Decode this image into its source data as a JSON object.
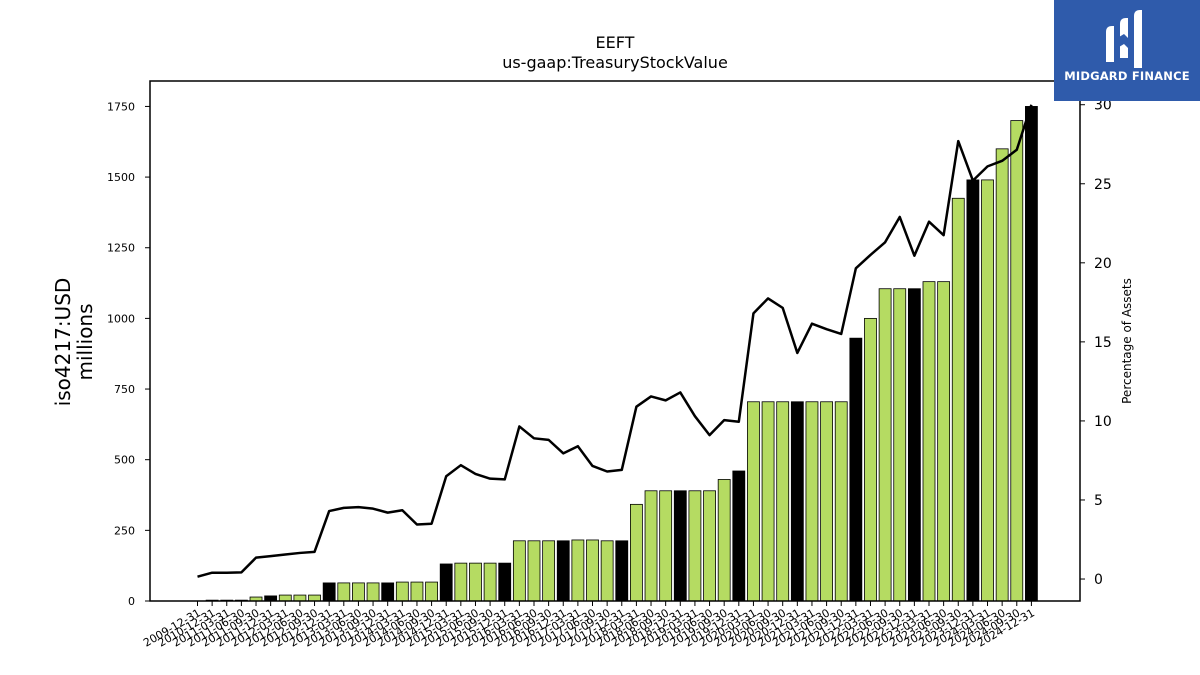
{
  "chart_data": {
    "type": "bar",
    "title": "EEFT",
    "subtitle": "us-gaap:TreasuryStockValue",
    "ylabel": "iso4217:USD\nmillions",
    "y2label": "Percentage of Assets",
    "ylim": [
      0,
      1840
    ],
    "y2lim": [
      -1.39,
      31.5
    ],
    "yticks": [
      0,
      250,
      500,
      750,
      1000,
      1250,
      1500,
      1750
    ],
    "y2ticks": [
      0,
      5,
      10,
      15,
      20,
      25,
      30
    ],
    "categories": [
      "2009-12-31",
      "2010-12-31",
      "2011-03-31",
      "2011-06-30",
      "2011-09-30",
      "2011-12-31",
      "2012-03-31",
      "2012-06-30",
      "2012-09-30",
      "2012-12-31",
      "2013-03-31",
      "2013-06-30",
      "2013-09-30",
      "2013-12-31",
      "2014-03-31",
      "2014-06-30",
      "2014-09-30",
      "2014-12-31",
      "2015-03-31",
      "2015-06-30",
      "2015-09-30",
      "2015-12-31",
      "2016-03-31",
      "2016-06-30",
      "2016-09-30",
      "2016-12-31",
      "2017-03-31",
      "2017-06-30",
      "2017-09-30",
      "2017-12-31",
      "2018-03-31",
      "2018-06-30",
      "2018-09-30",
      "2018-12-31",
      "2019-03-31",
      "2019-06-30",
      "2019-09-30",
      "2019-12-31",
      "2020-03-31",
      "2020-06-30",
      "2020-09-30",
      "2020-12-31",
      "2021-03-31",
      "2021-06-30",
      "2021-09-30",
      "2021-12-31",
      "2022-03-31",
      "2022-06-30",
      "2022-09-30",
      "2022-12-31",
      "2023-03-31",
      "2023-06-30",
      "2023-09-30",
      "2023-12-31",
      "2024-03-31",
      "2024-06-30",
      "2024-09-30",
      "2024-12-31"
    ],
    "series": [
      {
        "type": "bar",
        "values": [
          0,
          3,
          3,
          3,
          14,
          18,
          21,
          21,
          21,
          64,
          64,
          64,
          64,
          64,
          67,
          67,
          67,
          131,
          134,
          134,
          134,
          134,
          213,
          213,
          213,
          213,
          216,
          216,
          213,
          213,
          342,
          390,
          390,
          390,
          390,
          390,
          430,
          460,
          705,
          705,
          705,
          705,
          705,
          705,
          705,
          930,
          1000,
          1105,
          1105,
          1105,
          1130,
          1130,
          1425,
          1490,
          1490,
          1600,
          1700,
          1750
        ],
        "colors": [
          "#b5db62",
          "#b5db62",
          "#b5db62",
          "#b5db62",
          "#b5db62",
          "#000000",
          "#b5db62",
          "#b5db62",
          "#b5db62",
          "#000000",
          "#b5db62",
          "#b5db62",
          "#b5db62",
          "#000000",
          "#b5db62",
          "#b5db62",
          "#b5db62",
          "#000000",
          "#b5db62",
          "#b5db62",
          "#b5db62",
          "#000000",
          "#b5db62",
          "#b5db62",
          "#b5db62",
          "#000000",
          "#b5db62",
          "#b5db62",
          "#b5db62",
          "#000000",
          "#b5db62",
          "#b5db62",
          "#b5db62",
          "#000000",
          "#b5db62",
          "#b5db62",
          "#b5db62",
          "#000000",
          "#b5db62",
          "#b5db62",
          "#b5db62",
          "#000000",
          "#b5db62",
          "#b5db62",
          "#b5db62",
          "#000000",
          "#b5db62",
          "#b5db62",
          "#b5db62",
          "#000000",
          "#b5db62",
          "#b5db62",
          "#b5db62",
          "#000000",
          "#b5db62",
          "#b5db62",
          "#b5db62",
          "#000000"
        ]
      },
      {
        "type": "line",
        "axis": "right",
        "color": "#000000",
        "values": [
          0.15,
          0.4,
          0.4,
          0.42,
          1.35,
          1.45,
          1.55,
          1.65,
          1.72,
          4.3,
          4.5,
          4.55,
          4.45,
          4.2,
          4.35,
          3.45,
          3.5,
          6.5,
          7.2,
          6.65,
          6.35,
          6.3,
          9.65,
          8.9,
          8.8,
          7.95,
          8.4,
          7.15,
          6.8,
          6.9,
          10.9,
          11.55,
          11.3,
          11.8,
          10.3,
          9.1,
          10.05,
          9.95,
          16.8,
          17.75,
          17.15,
          14.3,
          16.15,
          15.8,
          15.5,
          19.65,
          20.5,
          21.3,
          22.9,
          20.45,
          22.6,
          21.75,
          27.7,
          25.2,
          26.1,
          26.45,
          27.15,
          30.0
        ]
      }
    ],
    "bar_edge_color": "#000000",
    "grid": false,
    "legend": "none"
  },
  "brand": {
    "name": "MIDGARD FINANCE",
    "background": "#2f5bab",
    "foreground": "#ffffff",
    "icon": "midgard-logo-icon"
  }
}
